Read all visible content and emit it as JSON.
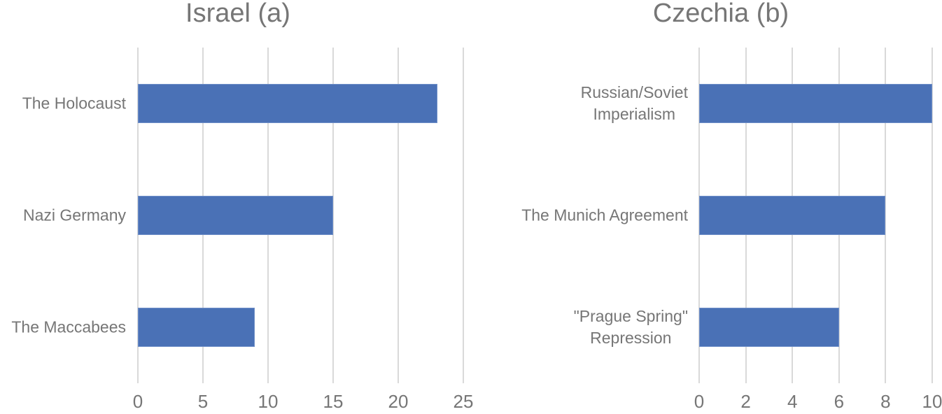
{
  "chart_data": [
    {
      "type": "bar",
      "orientation": "horizontal",
      "title": "Israel (a)",
      "categories": [
        "The Holocaust",
        "Nazi Germany",
        "The Maccabees"
      ],
      "values": [
        23,
        15,
        9
      ],
      "xlabel": "",
      "ylabel": "",
      "xlim": [
        0,
        25
      ],
      "xticks": [
        "0",
        "5",
        "10",
        "15",
        "20",
        "25"
      ],
      "grid": true,
      "bar_color": "#4a71b6"
    },
    {
      "type": "bar",
      "orientation": "horizontal",
      "title": "Czechia (b)",
      "categories": [
        "Russian/Soviet Imperialism",
        "The Munich Agreement",
        "\"Prague Spring\" Repression"
      ],
      "category_lines": [
        [
          "Russian/Soviet",
          "Imperialism"
        ],
        [
          "The Munich Agreement"
        ],
        [
          "\"Prague Spring\"",
          "Repression"
        ]
      ],
      "values": [
        10,
        8,
        6
      ],
      "xlabel": "",
      "ylabel": "",
      "xlim": [
        0,
        10
      ],
      "xticks": [
        "0",
        "2",
        "4",
        "6",
        "8",
        "10"
      ],
      "grid": true,
      "bar_color": "#4a71b6"
    }
  ]
}
